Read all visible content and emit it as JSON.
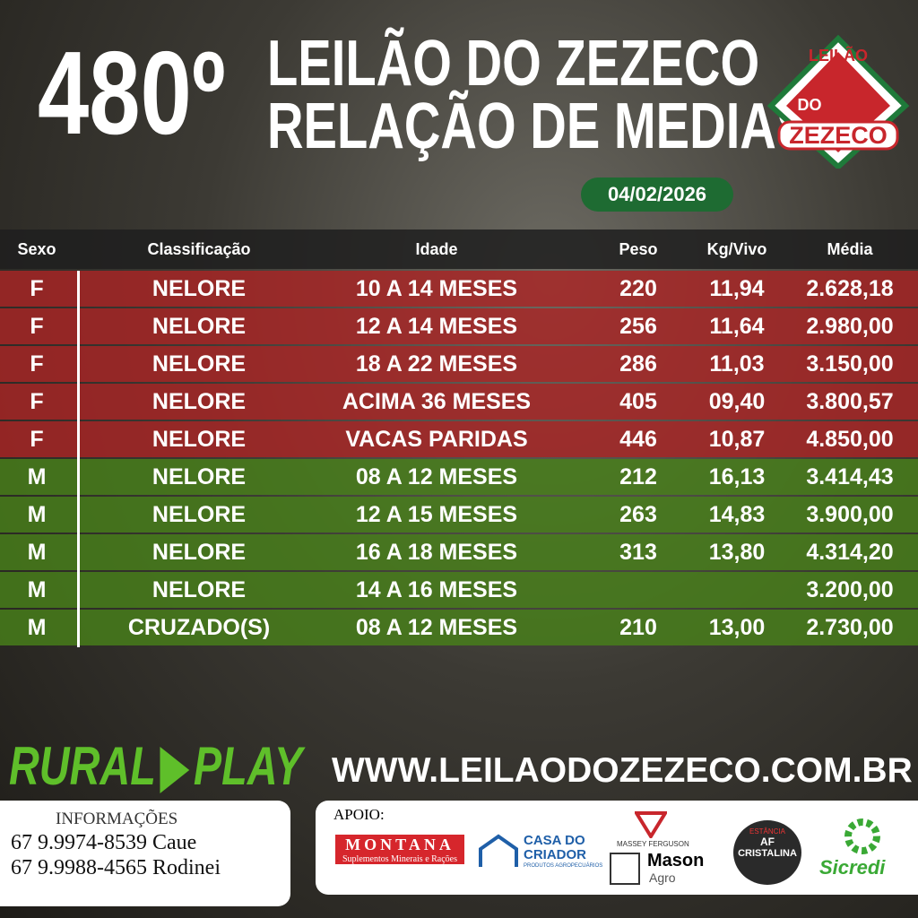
{
  "header": {
    "number": "480º",
    "title_line1": "LEILÃO DO ZEZECO",
    "title_line2": "RELAÇÃO DE MEDIAS",
    "date": "04/02/2026"
  },
  "logo": {
    "line1": "LEILÃO",
    "line2": "DO",
    "line3": "ZEZECO"
  },
  "table": {
    "headers": [
      "Sexo",
      "Classificação",
      "Idade",
      "Peso",
      "Kg/Vivo",
      "Média"
    ],
    "rows": [
      [
        "F",
        "NELORE",
        "10 A 14 MESES",
        "220",
        "11,94",
        "2.628,18"
      ],
      [
        "F",
        "NELORE",
        "12 A 14 MESES",
        "256",
        "11,64",
        "2.980,00"
      ],
      [
        "F",
        "NELORE",
        "18 A 22 MESES",
        "286",
        "11,03",
        "3.150,00"
      ],
      [
        "F",
        "NELORE",
        "ACIMA 36 MESES",
        "405",
        "09,40",
        "3.800,57"
      ],
      [
        "F",
        "NELORE",
        "VACAS PARIDAS",
        "446",
        "10,87",
        "4.850,00"
      ],
      [
        "M",
        "NELORE",
        "08 A 12 MESES",
        "212",
        "16,13",
        "3.414,43"
      ],
      [
        "M",
        "NELORE",
        "12 A 15 MESES",
        "263",
        "14,83",
        "3.900,00"
      ],
      [
        "M",
        "NELORE",
        "16 A 18 MESES",
        "313",
        "13,80",
        "4.314,20"
      ],
      [
        "M",
        "NELORE",
        "14 A 16 MESES",
        null,
        null,
        "3.200,00"
      ],
      [
        "M",
        "CRUZADO(S)",
        "08 A 12 MESES",
        "210",
        "13,00",
        "2.730,00"
      ]
    ]
  },
  "brand": {
    "rural": "RURAL",
    "play": "PLAY"
  },
  "website": "WWW.LEILAODOZEZECO.COM.BR",
  "info": {
    "label": "INFORMAÇÕES",
    "phone1": "67 9.9974-8539 Caue",
    "phone2": "67 9.9988-4565 Rodinei"
  },
  "support": {
    "label": "APOIO:",
    "montana": "MONTANA",
    "montana_sub": "Suplementos Minerais e Rações",
    "casa1": "CASA DO",
    "casa2": "CRIADOR",
    "casa_sub": "PRODUTOS AGROPECUÁRIOS",
    "massey": "MASSEY FERGUSON",
    "mason": "Mason",
    "agro": "Agro",
    "estancia": "ESTÂNCIA",
    "af": "AF",
    "cristalina": "CRISTALINA",
    "sicredi": "Sicredi"
  }
}
